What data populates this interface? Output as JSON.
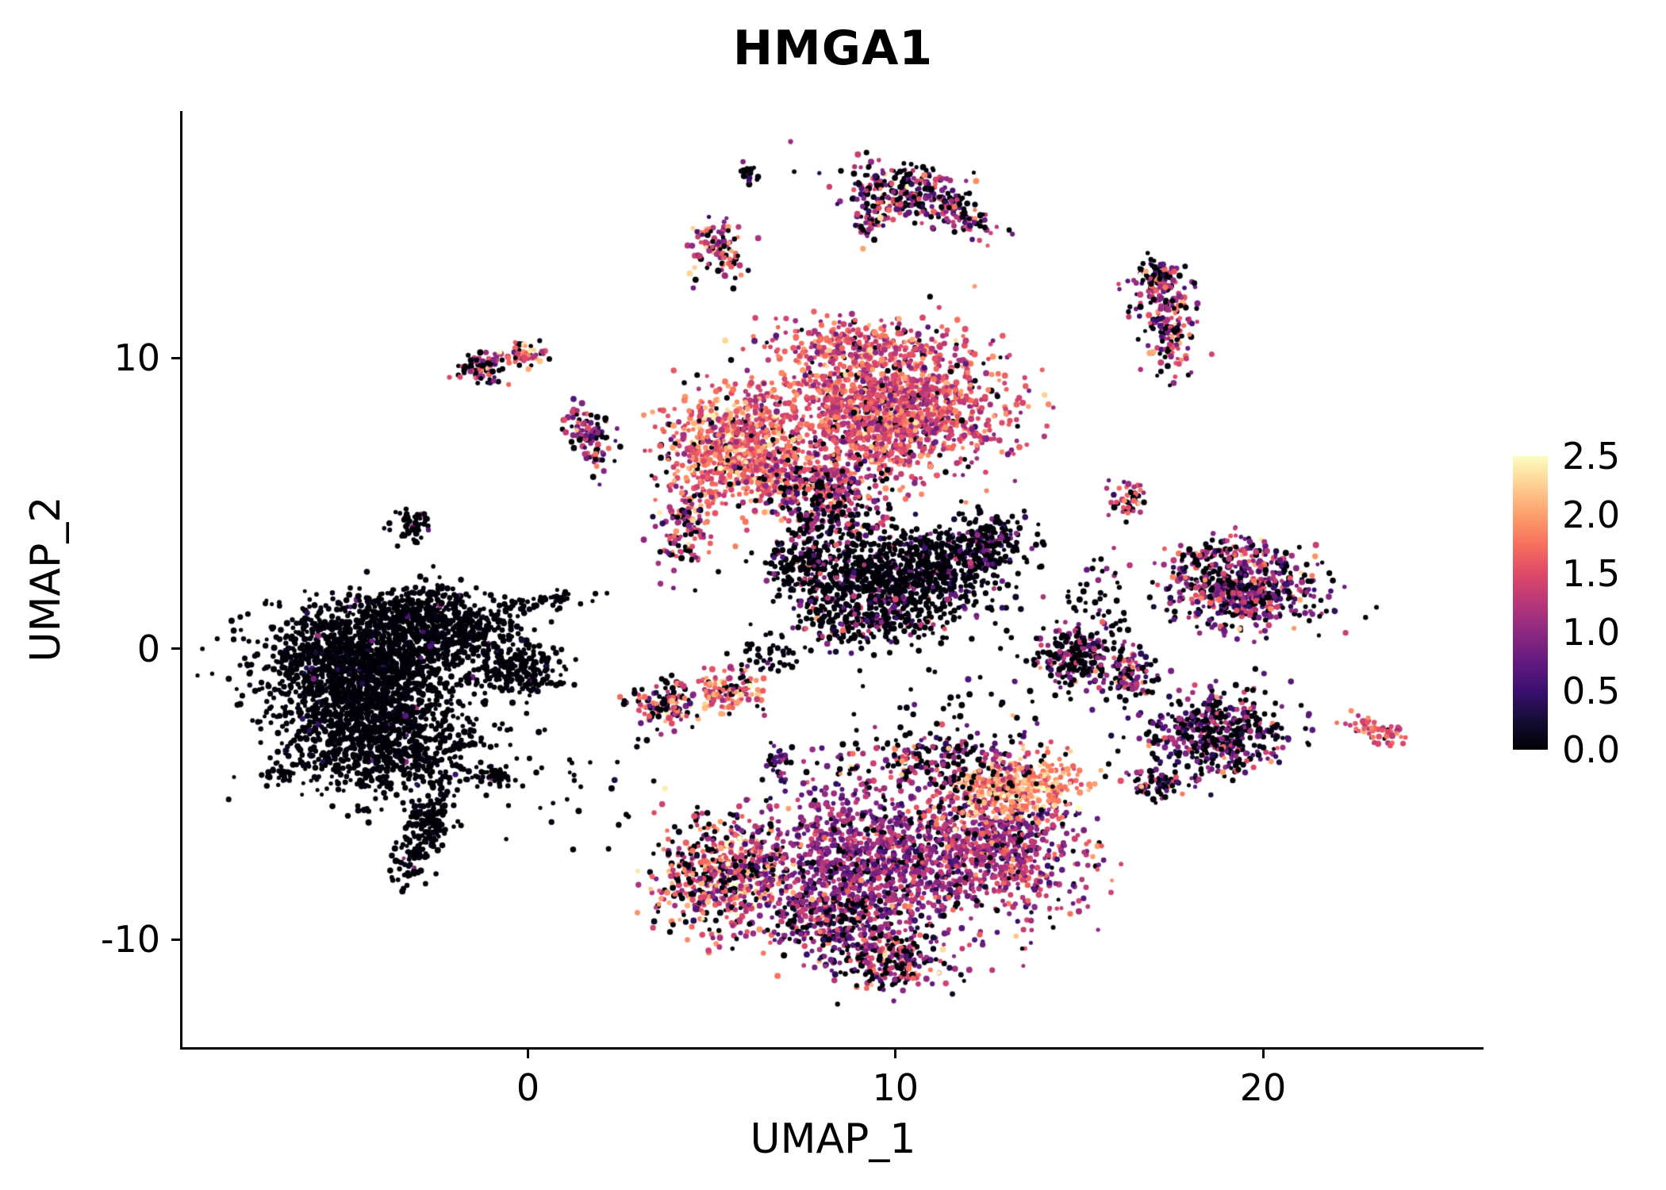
{
  "title": "HMGA1",
  "axes": {
    "xlabel": "UMAP_1",
    "ylabel": "UMAP_2",
    "x_ticks": [
      "0",
      "10",
      "20"
    ],
    "x_tick_values": [
      0,
      10,
      20
    ],
    "y_ticks": [
      "10",
      "0",
      "-10"
    ],
    "y_tick_values": [
      10,
      0,
      -10
    ]
  },
  "colorbar": {
    "min": 0.0,
    "max": 2.5,
    "tick_labels": [
      "2.5",
      "2.0",
      "1.5",
      "1.0",
      "0.5",
      "0.0"
    ],
    "tick_values": [
      2.5,
      2.0,
      1.5,
      1.0,
      0.5,
      0.0
    ],
    "colormap": "magma",
    "stops": [
      "#000004",
      "#140e36",
      "#3b0f70",
      "#641a80",
      "#8c2981",
      "#b73779",
      "#de4968",
      "#f7705c",
      "#fe9f6d",
      "#fecf92",
      "#fcfdbf"
    ]
  },
  "colors": {
    "background": "#ffffff",
    "axis": "#000000",
    "text": "#000000"
  },
  "chart_data": {
    "type": "scatter",
    "title": "HMGA1",
    "xlabel": "UMAP_1",
    "ylabel": "UMAP_2",
    "xlim": [
      -9.4,
      26.0
    ],
    "ylim": [
      -13.7,
      18.5
    ],
    "legend_position": "right",
    "grid": false,
    "point_radius_px": 3.1,
    "seed": 42,
    "value_label": "expression",
    "clusters": [
      {
        "cx": -4.6,
        "cy": -0.5,
        "sx": 1.4,
        "sy": 1.0,
        "n": 1500,
        "black": 0.97,
        "mean": 0.35,
        "sd": 0.3
      },
      {
        "cx": -4.1,
        "cy": -3.0,
        "sx": 1.3,
        "sy": 1.0,
        "n": 1000,
        "black": 0.97,
        "mean": 0.35,
        "sd": 0.3
      },
      {
        "cx": -2.7,
        "cy": 1.0,
        "sx": 1.0,
        "sy": 0.6,
        "n": 450,
        "black": 0.97,
        "mean": 0.35,
        "sd": 0.3
      },
      {
        "cx": -2.8,
        "cy": -6.2,
        "sx": 0.28,
        "sy": 1.0,
        "angle": -18,
        "n": 220,
        "black": 0.97,
        "mean": 0.35,
        "sd": 0.3
      },
      {
        "cx": -0.2,
        "cy": -0.7,
        "sx": 0.6,
        "sy": 0.5,
        "n": 220,
        "black": 0.97,
        "mean": 0.35,
        "sd": 0.3
      },
      {
        "cx": -1.4,
        "cy": 0.4,
        "sx": 0.5,
        "sy": 0.3,
        "n": 70,
        "black": 0.97,
        "mean": 0.35,
        "sd": 0.3
      },
      {
        "cx": -6.7,
        "cy": -4.3,
        "sx": 0.22,
        "sy": 0.15,
        "n": 25,
        "black": 0.97,
        "mean": 0.35,
        "sd": 0.3
      },
      {
        "cx": -0.9,
        "cy": -4.3,
        "sx": 0.3,
        "sy": 0.2,
        "n": 45,
        "black": 0.97,
        "mean": 0.35,
        "sd": 0.3
      },
      {
        "cx": -3.2,
        "cy": 4.3,
        "sx": 0.3,
        "sy": 0.35,
        "n": 55,
        "black": 0.85,
        "mean": 0.8,
        "sd": 0.4
      },
      {
        "cx": 0.4,
        "cy": 1.6,
        "sx": 0.8,
        "sy": 0.15,
        "angle": 12,
        "n": 50,
        "black": 0.95,
        "mean": 0.4,
        "sd": 0.3
      },
      {
        "cx": -1.3,
        "cy": 9.6,
        "sx": 0.32,
        "sy": 0.26,
        "n": 70,
        "black": 0.45,
        "mean": 1.2,
        "sd": 0.5
      },
      {
        "cx": -0.1,
        "cy": 10.1,
        "sx": 0.26,
        "sy": 0.2,
        "n": 55,
        "black": 0.2,
        "mean": 1.6,
        "sd": 0.4
      },
      {
        "cx": 1.7,
        "cy": 7.3,
        "sx": 0.26,
        "sy": 0.6,
        "angle": 20,
        "n": 100,
        "black": 0.3,
        "mean": 1.1,
        "sd": 0.5
      },
      {
        "cx": 5.1,
        "cy": 13.7,
        "sx": 0.36,
        "sy": 0.46,
        "n": 110,
        "black": 0.25,
        "mean": 1.5,
        "sd": 0.5
      },
      {
        "cx": 6.0,
        "cy": 16.3,
        "sx": 0.13,
        "sy": 0.2,
        "n": 18,
        "black": 0.95,
        "mean": 0.3,
        "sd": 0.2
      },
      {
        "cx": 10.3,
        "cy": 15.7,
        "sx": 0.9,
        "sy": 0.5,
        "angle": -12,
        "n": 260,
        "black": 0.35,
        "mean": 1.0,
        "sd": 0.55
      },
      {
        "cx": 11.9,
        "cy": 14.8,
        "sx": 0.55,
        "sy": 0.22,
        "angle": -30,
        "n": 75,
        "black": 0.3,
        "mean": 1.1,
        "sd": 0.5
      },
      {
        "cx": 9.3,
        "cy": 14.7,
        "sx": 0.2,
        "sy": 0.3,
        "n": 40,
        "black": 0.4,
        "mean": 1.0,
        "sd": 0.5
      },
      {
        "cx": 9.8,
        "cy": 8.3,
        "sx": 1.5,
        "sy": 1.2,
        "n": 1500,
        "black": 0.06,
        "mean": 1.45,
        "sd": 0.33
      },
      {
        "cx": 5.7,
        "cy": 6.9,
        "sx": 1.0,
        "sy": 1.1,
        "n": 800,
        "black": 0.08,
        "mean": 1.65,
        "sd": 0.35
      },
      {
        "cx": 7.8,
        "cy": 5.6,
        "sx": 0.8,
        "sy": 0.6,
        "n": 300,
        "black": 0.22,
        "mean": 1.2,
        "sd": 0.5
      },
      {
        "cx": 9.0,
        "cy": 10.6,
        "sx": 1.3,
        "sy": 0.4,
        "n": 220,
        "black": 0.08,
        "mean": 1.5,
        "sd": 0.35
      },
      {
        "cx": 4.3,
        "cy": 4.1,
        "sx": 0.35,
        "sy": 0.8,
        "n": 130,
        "black": 0.3,
        "mean": 1.3,
        "sd": 0.5
      },
      {
        "cx": 8.3,
        "cy": 4.4,
        "sx": 0.7,
        "sy": 0.5,
        "n": 120,
        "black": 0.5,
        "mean": 1.0,
        "sd": 0.5
      },
      {
        "cx": 9.9,
        "cy": 2.4,
        "sx": 1.4,
        "sy": 0.85,
        "n": 950,
        "black": 0.8,
        "mean": 0.7,
        "sd": 0.4
      },
      {
        "cx": 12.3,
        "cy": 3.6,
        "sx": 0.75,
        "sy": 0.45,
        "angle": 20,
        "n": 260,
        "black": 0.75,
        "mean": 0.7,
        "sd": 0.4
      },
      {
        "cx": 7.6,
        "cy": 2.9,
        "sx": 0.5,
        "sy": 0.65,
        "n": 150,
        "black": 0.65,
        "mean": 0.9,
        "sd": 0.5
      },
      {
        "cx": 9.2,
        "cy": 0.8,
        "sx": 1.0,
        "sy": 0.4,
        "n": 160,
        "black": 0.68,
        "mean": 1.0,
        "sd": 0.5
      },
      {
        "cx": 3.7,
        "cy": -1.9,
        "sx": 0.5,
        "sy": 0.45,
        "n": 130,
        "black": 0.45,
        "mean": 1.4,
        "sd": 0.5
      },
      {
        "cx": 5.4,
        "cy": -1.5,
        "sx": 0.5,
        "sy": 0.42,
        "n": 125,
        "black": 0.2,
        "mean": 1.6,
        "sd": 0.4
      },
      {
        "cx": 6.8,
        "cy": -3.9,
        "sx": 0.18,
        "sy": 0.32,
        "n": 35,
        "black": 0.3,
        "mean": 0.9,
        "sd": 0.3
      },
      {
        "cx": 6.6,
        "cy": -0.2,
        "sx": 0.45,
        "sy": 0.3,
        "n": 40,
        "black": 0.9,
        "mean": 0.5,
        "sd": 0.3
      },
      {
        "cx": 5.3,
        "cy": -7.8,
        "sx": 0.95,
        "sy": 1.05,
        "n": 560,
        "black": 0.28,
        "mean": 1.5,
        "sd": 0.5
      },
      {
        "cx": 9.3,
        "cy": -7.3,
        "sx": 1.6,
        "sy": 1.3,
        "n": 1200,
        "black": 0.12,
        "mean": 1.0,
        "sd": 0.3
      },
      {
        "cx": 12.8,
        "cy": -7.0,
        "sx": 1.2,
        "sy": 1.1,
        "n": 700,
        "black": 0.1,
        "mean": 1.15,
        "sd": 0.4
      },
      {
        "cx": 13.3,
        "cy": -4.8,
        "sx": 0.95,
        "sy": 0.5,
        "angle": 12,
        "n": 330,
        "black": 0.08,
        "mean": 1.9,
        "sd": 0.3
      },
      {
        "cx": 11.2,
        "cy": -3.9,
        "sx": 1.3,
        "sy": 0.6,
        "n": 260,
        "black": 0.5,
        "mean": 1.2,
        "sd": 0.6
      },
      {
        "cx": 9.9,
        "cy": -10.6,
        "sx": 0.95,
        "sy": 0.55,
        "n": 270,
        "black": 0.33,
        "mean": 1.1,
        "sd": 0.6
      },
      {
        "cx": 8.2,
        "cy": -9.3,
        "sx": 0.85,
        "sy": 0.6,
        "n": 230,
        "black": 0.3,
        "mean": 0.9,
        "sd": 0.45
      },
      {
        "cx": 14.9,
        "cy": -0.3,
        "sx": 0.55,
        "sy": 0.6,
        "n": 210,
        "black": 0.55,
        "mean": 0.8,
        "sd": 0.45
      },
      {
        "cx": 16.3,
        "cy": -0.9,
        "sx": 0.4,
        "sy": 0.4,
        "n": 120,
        "black": 0.4,
        "mean": 1.0,
        "sd": 0.5
      },
      {
        "cx": 19.4,
        "cy": 2.0,
        "sx": 1.05,
        "sy": 0.6,
        "n": 560,
        "black": 0.33,
        "mean": 1.0,
        "sd": 0.5
      },
      {
        "cx": 18.9,
        "cy": 3.2,
        "sx": 0.7,
        "sy": 0.28,
        "n": 100,
        "black": 0.3,
        "mean": 1.1,
        "sd": 0.5
      },
      {
        "cx": 18.7,
        "cy": -2.9,
        "sx": 0.95,
        "sy": 0.7,
        "n": 470,
        "black": 0.45,
        "mean": 0.8,
        "sd": 0.45
      },
      {
        "cx": 17.2,
        "cy": -4.6,
        "sx": 0.4,
        "sy": 0.3,
        "n": 70,
        "black": 0.45,
        "mean": 0.9,
        "sd": 0.5
      },
      {
        "cx": 16.3,
        "cy": 5.2,
        "sx": 0.27,
        "sy": 0.33,
        "n": 50,
        "black": 0.35,
        "mean": 1.3,
        "sd": 0.5
      },
      {
        "cx": 17.4,
        "cy": 11.2,
        "sx": 0.4,
        "sy": 0.95,
        "angle": 8,
        "n": 210,
        "black": 0.3,
        "mean": 1.1,
        "sd": 0.55
      },
      {
        "cx": 17.1,
        "cy": 12.7,
        "sx": 0.26,
        "sy": 0.26,
        "n": 55,
        "black": 0.3,
        "mean": 1.2,
        "sd": 0.5
      },
      {
        "cx": 23.0,
        "cy": -2.8,
        "sx": 0.5,
        "sy": 0.18,
        "angle": -14,
        "n": 55,
        "black": 0.12,
        "mean": 1.5,
        "sd": 0.3
      },
      {
        "cx": 1.4,
        "cy": -4.6,
        "sx": 1.1,
        "sy": 0.9,
        "n": 28,
        "black": 0.96,
        "mean": 0.3,
        "sd": 0.2
      },
      {
        "cx": 15.6,
        "cy": 1.7,
        "sx": 0.5,
        "sy": 0.9,
        "n": 45,
        "black": 0.75,
        "mean": 0.8,
        "sd": 0.4
      },
      {
        "cx": 12.0,
        "cy": -1.5,
        "sx": 1.8,
        "sy": 0.8,
        "n": 40,
        "black": 0.85,
        "mean": 0.8,
        "sd": 0.5
      }
    ]
  }
}
